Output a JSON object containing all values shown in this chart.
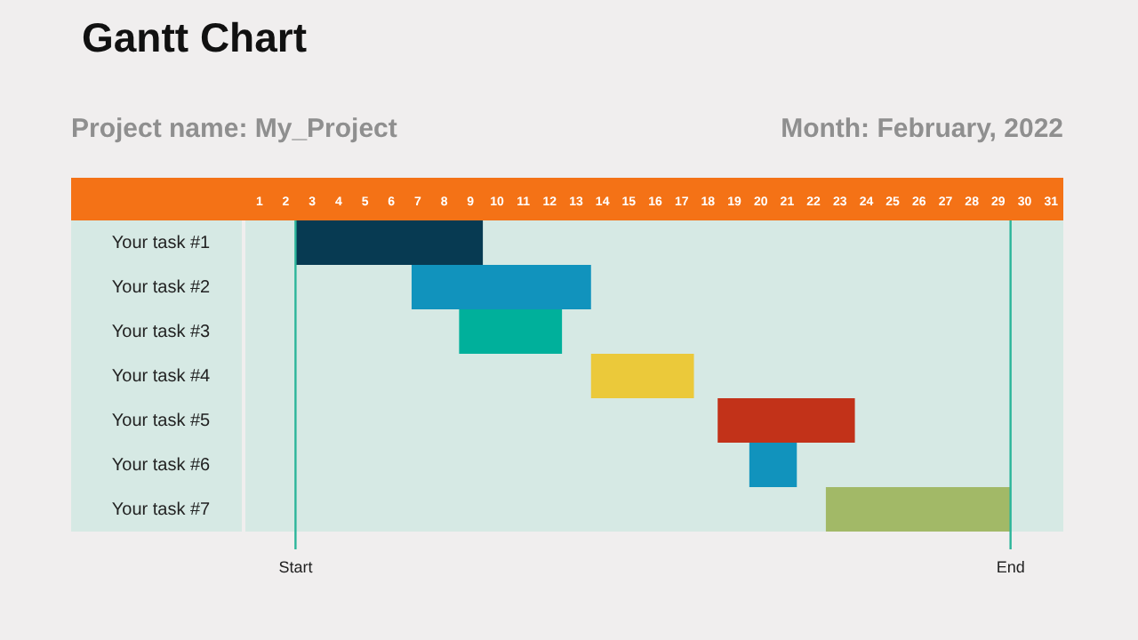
{
  "chart_data": {
    "type": "bar",
    "orientation": "horizontal",
    "title": "Gantt Chart",
    "annotations": [
      "Project name: My_Project",
      "Month: February, 2022"
    ],
    "categories": [
      "Your task #1",
      "Your task #2",
      "Your task #3",
      "Your task #4",
      "Your task #5",
      "Your task #6",
      "Your task #7"
    ],
    "base": [
      2.4,
      6.8,
      8.6,
      13.6,
      18.4,
      19.6,
      22.5
    ],
    "values": [
      7.1,
      6.8,
      3.9,
      3.9,
      5.2,
      1.8,
      7.0
    ],
    "colors": [
      "#073a52",
      "#1193bd",
      "#00b09b",
      "#ebc93a",
      "#c23219",
      "#1193bd",
      "#a2b967"
    ],
    "xlim": [
      0.5,
      31.5
    ],
    "xticks": [
      1,
      2,
      3,
      4,
      5,
      6,
      7,
      8,
      9,
      10,
      11,
      12,
      13,
      14,
      15,
      16,
      17,
      18,
      19,
      20,
      21,
      22,
      23,
      24,
      25,
      26,
      27,
      28,
      29,
      30,
      31
    ],
    "ref_lines": [
      {
        "axis": "x",
        "value": 2.4,
        "label": "Start",
        "color": "#2bb59a"
      },
      {
        "axis": "x",
        "value": 29.5,
        "label": "End",
        "color": "#2bb59a"
      }
    ],
    "grid": false,
    "legend": false
  }
}
